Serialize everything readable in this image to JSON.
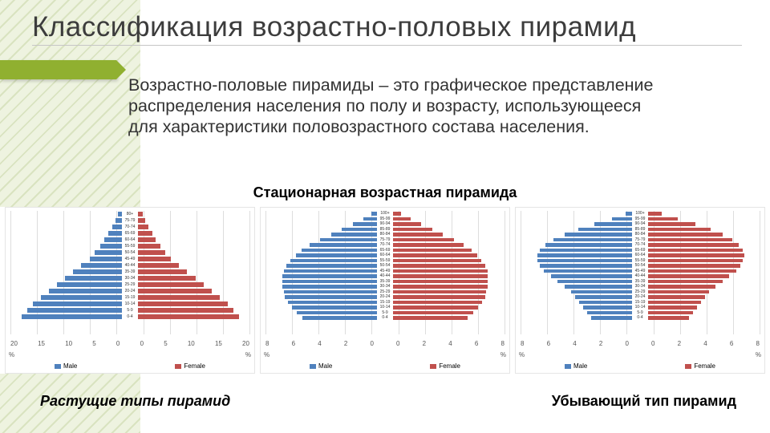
{
  "title": "Классификация возрастно-половых пирамид",
  "description": "Возрастно-половые пирамиды – это графическое представление распределения населения по полу и возрасту, использующееся для характеристики половозрастного состава населения.",
  "subtitle_top": "Стационарная возрастная пирамида",
  "caption_left": "Растущие типы пирамид",
  "caption_right": "Убывающий тип пирамид",
  "colors": {
    "male": "#4f81bd",
    "female": "#c0504d",
    "accent": "#90b030",
    "grid": "#dddddd",
    "background": "#ffffff"
  },
  "age_labels": [
    "80+",
    "75-79",
    "70-74",
    "65-69",
    "60-64",
    "55-59",
    "50-54",
    "45-49",
    "40-44",
    "35-39",
    "30-34",
    "25-29",
    "20-24",
    "15-19",
    "10-14",
    "5-9",
    "0-4"
  ],
  "age_labels_alt": [
    "100+",
    "95-99",
    "90-94",
    "85-89",
    "80-84",
    "75-79",
    "70-74",
    "65-69",
    "60-64",
    "55-59",
    "50-54",
    "45-49",
    "40-44",
    "35-39",
    "30-34",
    "25-29",
    "20-24",
    "15-19",
    "10-14",
    "5-9",
    "0-4"
  ],
  "legend_male": "Male",
  "legend_female": "Female",
  "x_unit": "%",
  "charts": [
    {
      "type": "pyramid",
      "shape": "growing",
      "x_ticks": [
        20,
        15,
        10,
        5,
        0,
        0,
        5,
        10,
        15,
        20
      ],
      "xlim": [
        0,
        20
      ],
      "male": [
        0.8,
        1.2,
        1.8,
        2.5,
        3.2,
        4.0,
        5.0,
        6.0,
        7.5,
        9.0,
        10.5,
        12.0,
        13.5,
        15.0,
        16.5,
        17.5,
        18.5
      ],
      "female": [
        0.9,
        1.3,
        1.9,
        2.6,
        3.3,
        4.1,
        5.1,
        6.1,
        7.6,
        9.1,
        10.6,
        12.1,
        13.6,
        15.1,
        16.6,
        17.6,
        18.6
      ]
    },
    {
      "type": "pyramid",
      "shape": "stationary",
      "x_ticks": [
        8,
        6,
        4,
        2,
        0,
        0,
        2,
        4,
        6,
        8
      ],
      "xlim": [
        0,
        8
      ],
      "male": [
        0.4,
        1.0,
        1.8,
        2.6,
        3.4,
        4.2,
        5.0,
        5.6,
        6.0,
        6.4,
        6.7,
        6.9,
        7.0,
        7.0,
        7.0,
        6.9,
        6.8,
        6.6,
        6.3,
        5.9,
        5.5
      ],
      "female": [
        0.6,
        1.3,
        2.1,
        2.9,
        3.7,
        4.5,
        5.2,
        5.8,
        6.2,
        6.5,
        6.8,
        7.0,
        7.0,
        7.0,
        7.0,
        6.9,
        6.8,
        6.6,
        6.3,
        5.9,
        5.5
      ]
    },
    {
      "type": "pyramid",
      "shape": "declining",
      "x_ticks": [
        8,
        6,
        4,
        2,
        0,
        0,
        2,
        4,
        6,
        8
      ],
      "xlim": [
        0,
        8
      ],
      "male": [
        0.5,
        1.5,
        2.8,
        4.0,
        5.0,
        5.8,
        6.4,
        6.8,
        7.0,
        7.0,
        6.8,
        6.5,
        6.0,
        5.5,
        5.0,
        4.5,
        4.2,
        3.9,
        3.6,
        3.3,
        3.0
      ],
      "female": [
        1.0,
        2.2,
        3.5,
        4.6,
        5.5,
        6.2,
        6.7,
        7.0,
        7.1,
        7.0,
        6.8,
        6.5,
        6.0,
        5.5,
        5.0,
        4.5,
        4.2,
        3.9,
        3.6,
        3.3,
        3.0
      ]
    }
  ]
}
